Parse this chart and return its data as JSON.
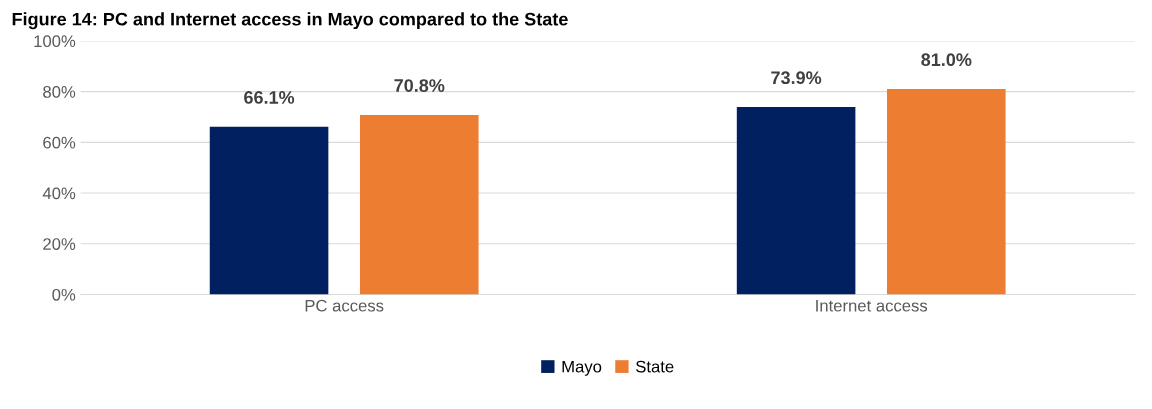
{
  "chart_data": {
    "type": "bar",
    "title": "Figure 14: PC and Internet access in Mayo compared to the State",
    "categories": [
      "PC access",
      "Internet access"
    ],
    "series": [
      {
        "name": "Mayo",
        "color": "#002060",
        "values": [
          66.1,
          73.9
        ]
      },
      {
        "name": "State",
        "color": "#ed7d31",
        "values": [
          70.8,
          81.0
        ]
      }
    ],
    "value_labels": [
      [
        "66.1%",
        "73.9%"
      ],
      [
        "70.8%",
        "81.0%"
      ]
    ],
    "ylim": [
      0,
      100
    ],
    "yticks": [
      {
        "value": 0,
        "label": "0%"
      },
      {
        "value": 20,
        "label": "20%"
      },
      {
        "value": 40,
        "label": "40%"
      },
      {
        "value": 60,
        "label": "60%"
      },
      {
        "value": 80,
        "label": "80%"
      },
      {
        "value": 100,
        "label": "100%"
      }
    ],
    "grid": "y",
    "legend": "bottom"
  }
}
